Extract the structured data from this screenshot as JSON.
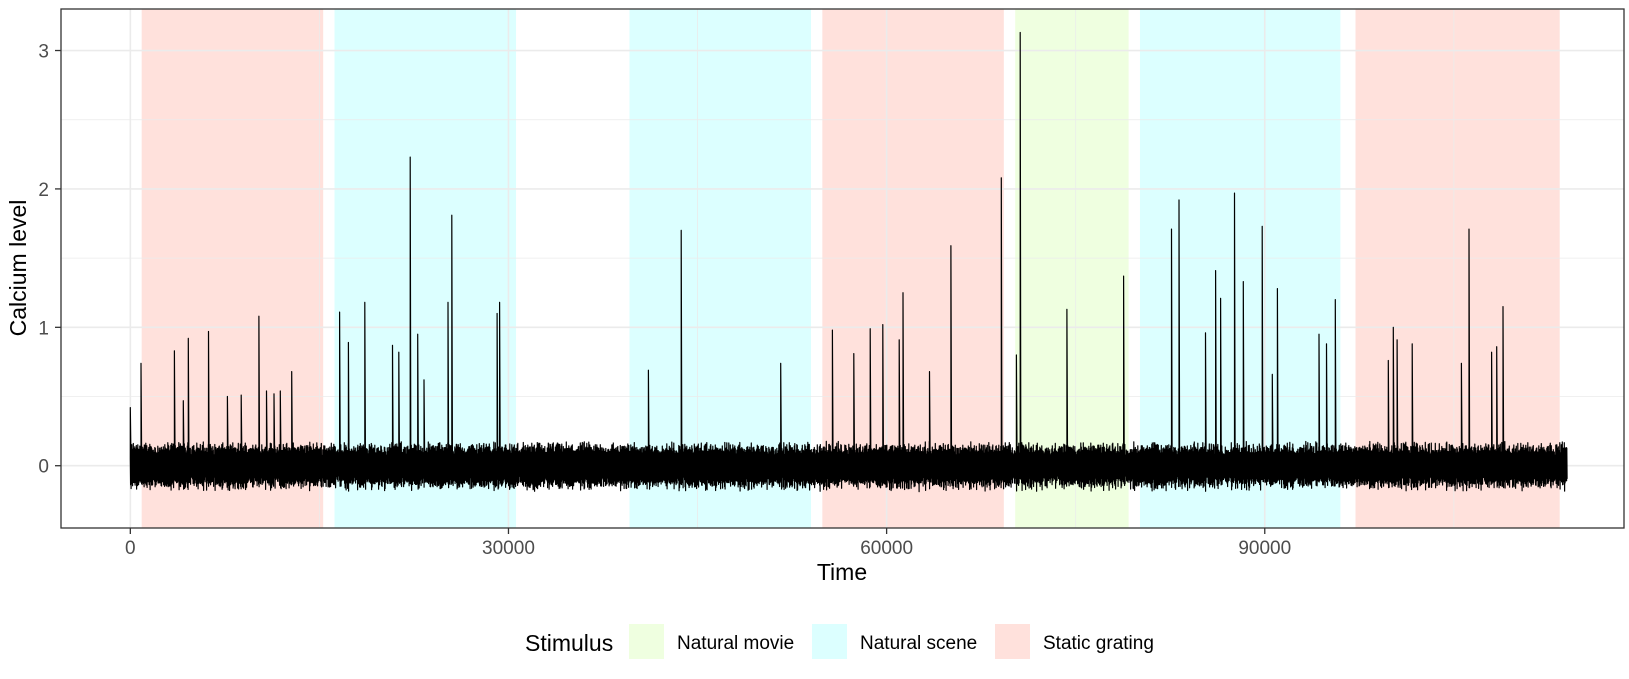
{
  "chart_data": {
    "type": "line",
    "title": "",
    "xlabel": "Time",
    "ylabel": "Calcium level",
    "xlim": [
      -5500,
      118500
    ],
    "ylim": [
      -0.45,
      3.3
    ],
    "x_ticks": [
      0,
      30000,
      60000,
      90000
    ],
    "x_tick_labels": [
      "0",
      "30000",
      "60000",
      "90000"
    ],
    "y_ticks": [
      0,
      1,
      2,
      3
    ],
    "y_tick_labels": [
      "0",
      "1",
      "2",
      "3"
    ],
    "grid": true,
    "colors": {
      "Natural movie": "#efffe0",
      "Natural scene": "#dcffff",
      "Static grating": "#ffe1dc",
      "trace": "#000000"
    },
    "stimulus_blocks": [
      {
        "stimulus": "Static grating",
        "start": 900,
        "end": 15300
      },
      {
        "stimulus": "Natural scene",
        "start": 16200,
        "end": 30600
      },
      {
        "stimulus": "Natural scene",
        "start": 39600,
        "end": 54000
      },
      {
        "stimulus": "Static grating",
        "start": 54900,
        "end": 69300
      },
      {
        "stimulus": "Natural movie",
        "start": 70200,
        "end": 79200
      },
      {
        "stimulus": "Natural scene",
        "start": 80100,
        "end": 96000
      },
      {
        "stimulus": "Static grating",
        "start": 97200,
        "end": 113400
      }
    ],
    "noise_band": {
      "x_start": 0,
      "x_end": 114000,
      "amplitude": 0.15
    },
    "spikes": [
      {
        "x": 0,
        "y": 0.42
      },
      {
        "x": 850,
        "y": 0.74
      },
      {
        "x": 3500,
        "y": 0.83
      },
      {
        "x": 4200,
        "y": 0.47
      },
      {
        "x": 4600,
        "y": 0.92
      },
      {
        "x": 6200,
        "y": 0.97
      },
      {
        "x": 7700,
        "y": 0.5
      },
      {
        "x": 8800,
        "y": 0.51
      },
      {
        "x": 10200,
        "y": 1.08
      },
      {
        "x": 10800,
        "y": 0.54
      },
      {
        "x": 11400,
        "y": 0.52
      },
      {
        "x": 11900,
        "y": 0.54
      },
      {
        "x": 12800,
        "y": 0.68
      },
      {
        "x": 16600,
        "y": 1.11
      },
      {
        "x": 17300,
        "y": 0.89
      },
      {
        "x": 18600,
        "y": 1.18
      },
      {
        "x": 20800,
        "y": 0.87
      },
      {
        "x": 21300,
        "y": 0.82
      },
      {
        "x": 22200,
        "y": 2.23
      },
      {
        "x": 22800,
        "y": 0.95
      },
      {
        "x": 23300,
        "y": 0.62
      },
      {
        "x": 25200,
        "y": 1.18
      },
      {
        "x": 25500,
        "y": 1.81
      },
      {
        "x": 29100,
        "y": 1.1
      },
      {
        "x": 29300,
        "y": 1.18
      },
      {
        "x": 41100,
        "y": 0.69
      },
      {
        "x": 43700,
        "y": 1.7
      },
      {
        "x": 51600,
        "y": 0.74
      },
      {
        "x": 55700,
        "y": 0.98
      },
      {
        "x": 57400,
        "y": 0.81
      },
      {
        "x": 58700,
        "y": 0.99
      },
      {
        "x": 59700,
        "y": 1.02
      },
      {
        "x": 61000,
        "y": 0.91
      },
      {
        "x": 61300,
        "y": 1.25
      },
      {
        "x": 63400,
        "y": 0.68
      },
      {
        "x": 65100,
        "y": 1.59
      },
      {
        "x": 69100,
        "y": 2.08
      },
      {
        "x": 70300,
        "y": 0.8
      },
      {
        "x": 70600,
        "y": 3.13
      },
      {
        "x": 74300,
        "y": 1.13
      },
      {
        "x": 78800,
        "y": 1.37
      },
      {
        "x": 82600,
        "y": 1.71
      },
      {
        "x": 83200,
        "y": 1.92
      },
      {
        "x": 85300,
        "y": 0.96
      },
      {
        "x": 86100,
        "y": 1.41
      },
      {
        "x": 86500,
        "y": 1.21
      },
      {
        "x": 87600,
        "y": 1.97
      },
      {
        "x": 88300,
        "y": 1.33
      },
      {
        "x": 89800,
        "y": 1.73
      },
      {
        "x": 90600,
        "y": 0.66
      },
      {
        "x": 91000,
        "y": 1.28
      },
      {
        "x": 94300,
        "y": 0.95
      },
      {
        "x": 94900,
        "y": 0.88
      },
      {
        "x": 95600,
        "y": 1.2
      },
      {
        "x": 99800,
        "y": 0.76
      },
      {
        "x": 100200,
        "y": 1.0
      },
      {
        "x": 100500,
        "y": 0.91
      },
      {
        "x": 101700,
        "y": 0.88
      },
      {
        "x": 105600,
        "y": 0.74
      },
      {
        "x": 106200,
        "y": 1.71
      },
      {
        "x": 108000,
        "y": 0.82
      },
      {
        "x": 108400,
        "y": 0.86
      },
      {
        "x": 108900,
        "y": 1.15
      }
    ],
    "legend": {
      "title": "Stimulus",
      "position": "bottom",
      "entries": [
        "Natural movie",
        "Natural scene",
        "Static grating"
      ]
    }
  }
}
